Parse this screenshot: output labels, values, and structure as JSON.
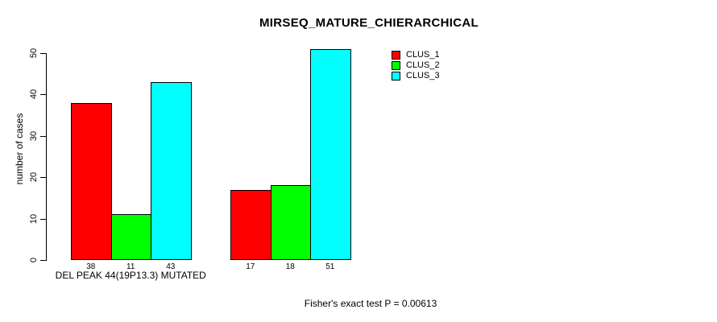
{
  "chart_data": {
    "type": "bar",
    "title": "MIRSEQ_MATURE_CHIERARCHICAL",
    "xlabel": "",
    "ylabel": "number of cases",
    "ylim": [
      0,
      50
    ],
    "yticks": [
      "0",
      "10",
      "20",
      "30",
      "40",
      "50"
    ],
    "grid": false,
    "legend": {
      "position": "top-right",
      "entries": [
        {
          "label": "CLUS_1",
          "color": "#FF0000"
        },
        {
          "label": "CLUS_2",
          "color": "#00FF00"
        },
        {
          "label": "CLUS_3",
          "color": "#00FFFF"
        }
      ]
    },
    "groups": [
      {
        "label": "DEL PEAK 44(19P13.3) MUTATED",
        "values": [
          38,
          11,
          43
        ],
        "bar_labels": [
          "38",
          "11",
          "43"
        ]
      },
      {
        "label": "",
        "values": [
          17,
          18,
          51
        ],
        "bar_labels": [
          "17",
          "18",
          "51"
        ]
      }
    ],
    "annotation": "Fisher's exact test P = 0.00613"
  }
}
